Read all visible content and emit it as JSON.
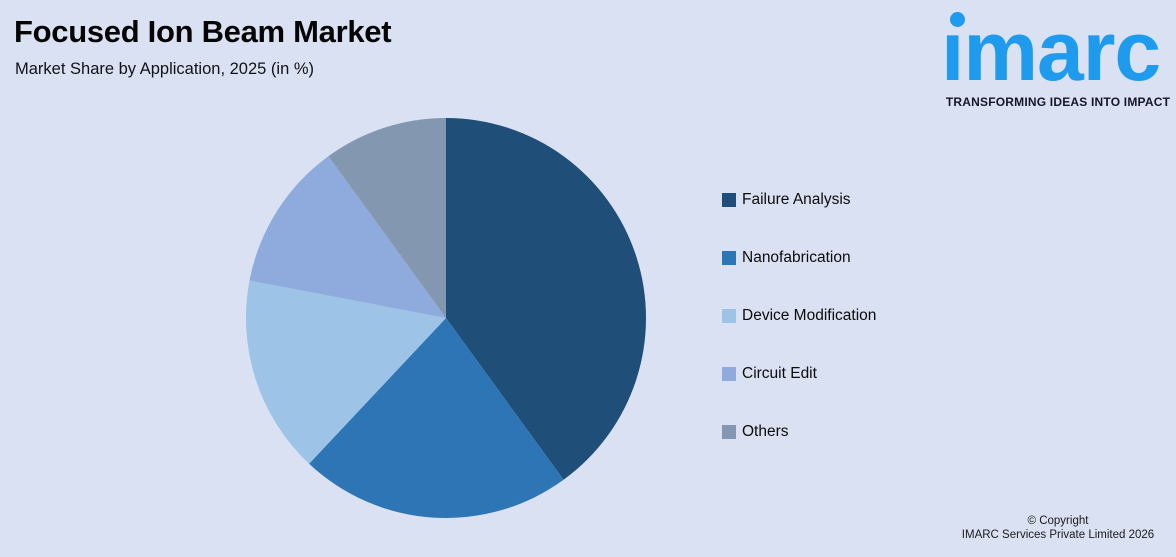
{
  "background_color": "#D9E1F2",
  "header": {
    "title": "Focused Ion Beam Market",
    "subtitle": "Market Share by Application, 2025 (in %)"
  },
  "logo": {
    "wordmark": "imarc",
    "tagline": "TRANSFORMING IDEAS INTO IMPACT",
    "brand_color": "#1E9BEC"
  },
  "chart_data": {
    "type": "pie",
    "title": "Focused Ion Beam Market",
    "subtitle": "Market Share by Application, 2025 (in %)",
    "unit": "%",
    "categories": [
      "Failure Analysis",
      "Nanofabrication",
      "Device Modification",
      "Circuit Edit",
      "Others"
    ],
    "values": [
      40,
      22,
      16,
      12,
      10
    ],
    "colors": [
      "#1F4E79",
      "#2E75B6",
      "#9DC3E6",
      "#8FAADC",
      "#8497B0"
    ],
    "start_angle_deg": 0,
    "direction": "clockwise",
    "legend_position": "right",
    "data_labels": "none"
  },
  "legend": {
    "items": [
      {
        "label": "Failure Analysis",
        "color": "#1F4E79"
      },
      {
        "label": "Nanofabrication",
        "color": "#2E75B6"
      },
      {
        "label": "Device Modification",
        "color": "#9DC3E6"
      },
      {
        "label": "Circuit Edit",
        "color": "#8FAADC"
      },
      {
        "label": "Others",
        "color": "#8497B0"
      }
    ]
  },
  "footer": {
    "copyright_line1": "© Copyright",
    "copyright_line2": "IMARC Services Private Limited 2026"
  }
}
